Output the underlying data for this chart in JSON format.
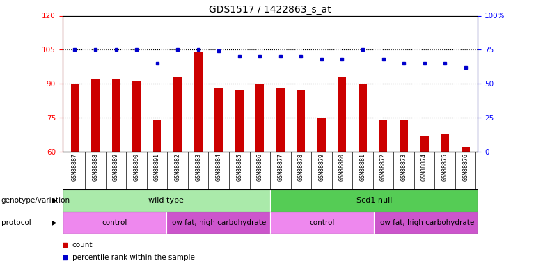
{
  "title": "GDS1517 / 1422863_s_at",
  "samples": [
    "GSM88887",
    "GSM88888",
    "GSM88889",
    "GSM88890",
    "GSM88891",
    "GSM88882",
    "GSM88883",
    "GSM88884",
    "GSM88885",
    "GSM88886",
    "GSM88877",
    "GSM88878",
    "GSM88879",
    "GSM88880",
    "GSM88881",
    "GSM88872",
    "GSM88873",
    "GSM88874",
    "GSM88875",
    "GSM88876"
  ],
  "red_values": [
    90,
    92,
    92,
    91,
    74,
    93,
    104,
    88,
    87,
    90,
    88,
    87,
    75,
    93,
    90,
    74,
    74,
    67,
    68,
    62
  ],
  "blue_values_pct": [
    75,
    75,
    75,
    75,
    65,
    75,
    75,
    74,
    70,
    70,
    70,
    70,
    68,
    68,
    75,
    68,
    65,
    65,
    65,
    62
  ],
  "ylim_left": [
    60,
    120
  ],
  "ylim_right": [
    0,
    100
  ],
  "yticks_left": [
    60,
    75,
    90,
    105,
    120
  ],
  "yticks_right": [
    0,
    25,
    50,
    75,
    100
  ],
  "ytick_labels_right": [
    "0",
    "25",
    "50",
    "75",
    "100%"
  ],
  "hlines": [
    75,
    90,
    105
  ],
  "bar_color": "#cc0000",
  "dot_color": "#0000cc",
  "bar_width": 0.4,
  "genotype_groups": [
    {
      "label": "wild type",
      "start": 0,
      "end": 10,
      "color": "#aaeaaa"
    },
    {
      "label": "Scd1 null",
      "start": 10,
      "end": 20,
      "color": "#55cc55"
    }
  ],
  "protocol_groups": [
    {
      "label": "control",
      "start": 0,
      "end": 5,
      "color": "#ee88ee"
    },
    {
      "label": "low fat, high carbohydrate",
      "start": 5,
      "end": 10,
      "color": "#cc55cc"
    },
    {
      "label": "control",
      "start": 10,
      "end": 15,
      "color": "#ee88ee"
    },
    {
      "label": "low fat, high carbohydrate",
      "start": 15,
      "end": 20,
      "color": "#cc55cc"
    }
  ],
  "left_label_genotype": "genotype/variation",
  "left_label_protocol": "protocol",
  "legend_count_color": "#cc0000",
  "legend_pct_color": "#0000cc",
  "legend_count_label": "count",
  "legend_pct_label": "percentile rank within the sample",
  "title_fontsize": 10,
  "tick_fontsize": 7.5,
  "xtick_fontsize": 6.0,
  "row_label_fontsize": 7.5,
  "row_text_fontsize": 8,
  "legend_fontsize": 7.5
}
